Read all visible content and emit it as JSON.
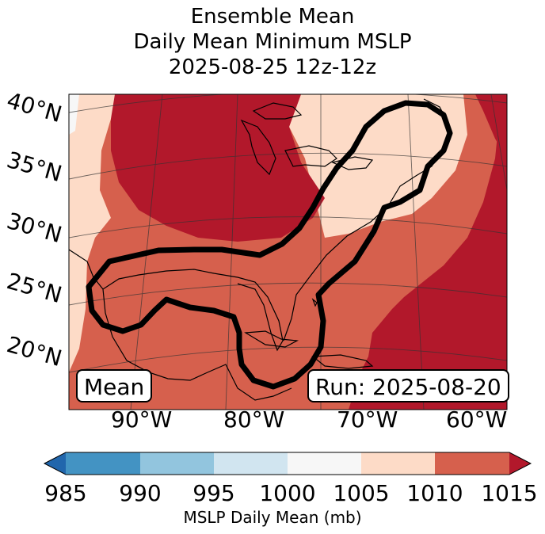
{
  "title": {
    "line1": "Ensemble Mean",
    "line2": "Daily Mean Minimum MSLP",
    "line3": "2025-08-25 12z-12z"
  },
  "map": {
    "lat_labels": [
      "40°N",
      "35°N",
      "30°N",
      "25°N",
      "20°N"
    ],
    "lon_labels": [
      "90°W",
      "80°W",
      "70°W",
      "60°W"
    ],
    "mean_label": "Mean",
    "run_label": "Run: 2025-08-20",
    "contour": "probability region outline (black)"
  },
  "colorbar": {
    "ticks": [
      "985",
      "990",
      "995",
      "1000",
      "1005",
      "1010",
      "1015"
    ],
    "label": "MSLP Daily Mean (mb)",
    "bins": [
      {
        "range": "<985",
        "color": "#2166ac"
      },
      {
        "range": "985-990",
        "color": "#4393c3"
      },
      {
        "range": "990-995",
        "color": "#92c5de"
      },
      {
        "range": "995-1000",
        "color": "#d1e5f0"
      },
      {
        "range": "1000-1005",
        "color": "#f7f7f7"
      },
      {
        "range": "1005-1010",
        "color": "#fddbc7"
      },
      {
        "range": "1010-1015",
        "color": "#d6604d"
      },
      {
        "range": ">1015",
        "color": "#b2182b"
      }
    ]
  },
  "colors": {
    "c1000": "#f7f7f7",
    "c1005": "#fddbc7",
    "c1010": "#d6604d",
    "c1015": "#b2182b"
  }
}
